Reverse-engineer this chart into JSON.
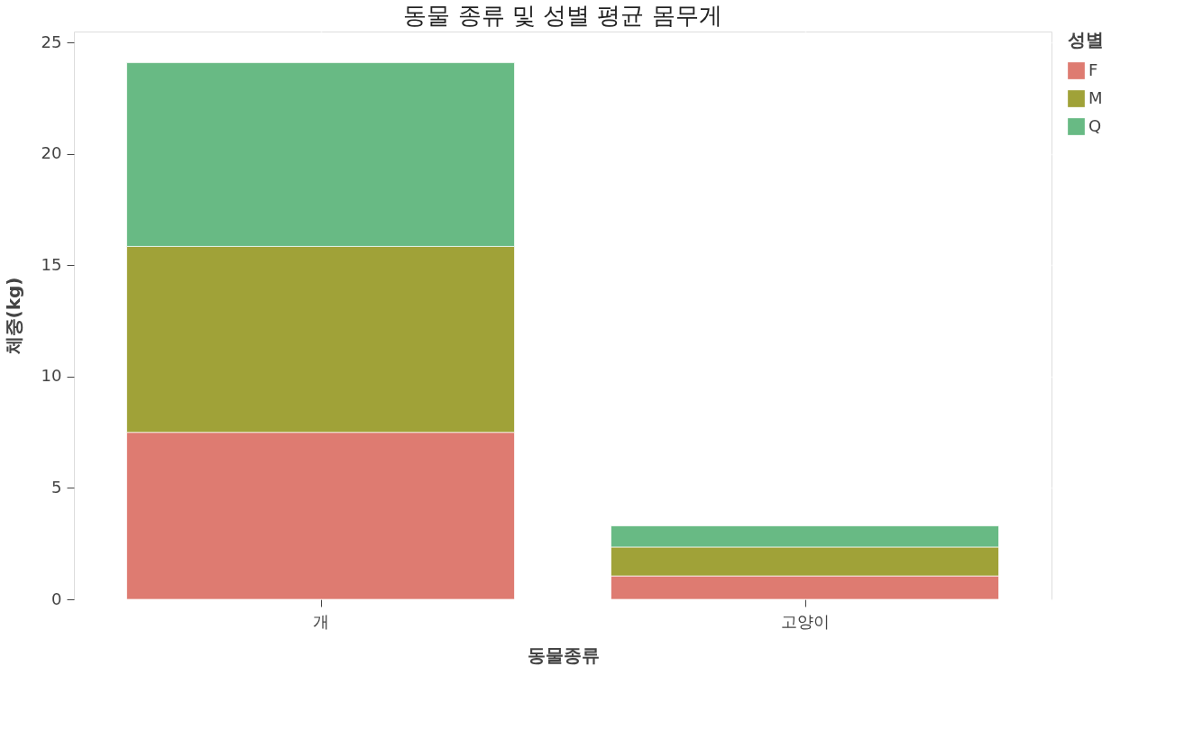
{
  "chart_data": {
    "type": "bar",
    "title": "동물 종류 및 성별 평균 몸무게",
    "xlabel": "동물종류",
    "ylabel": "체중(kg)",
    "legend_title": "성별",
    "categories": [
      "개",
      "고양이"
    ],
    "series": [
      {
        "name": "F",
        "color": "#de7b71",
        "values": [
          7.5,
          1.05
        ]
      },
      {
        "name": "M",
        "color": "#a0a238",
        "values": [
          8.35,
          1.3
        ]
      },
      {
        "name": "Q",
        "color": "#68ba84",
        "values": [
          8.25,
          0.95
        ]
      }
    ],
    "stacked": true,
    "ylim": [
      0,
      25.5
    ],
    "yticks": [
      0,
      5,
      10,
      15,
      20,
      25
    ],
    "grid": true,
    "legend": "top right"
  }
}
